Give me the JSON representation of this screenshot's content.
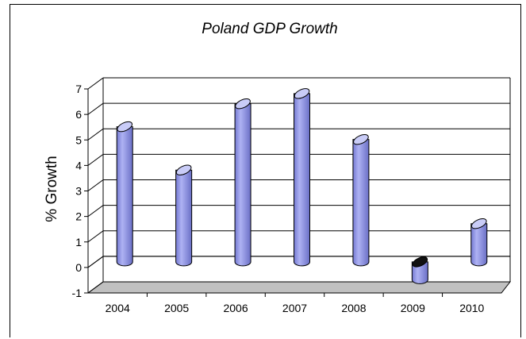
{
  "chart_data": {
    "type": "bar",
    "title": "Poland GDP Growth",
    "xlabel": "",
    "ylabel": "% Growth",
    "categories": [
      "2004",
      "2005",
      "2006",
      "2007",
      "2008",
      "2009",
      "2010"
    ],
    "values": [
      5.3,
      3.6,
      6.2,
      6.6,
      4.8,
      -0.7,
      1.5
    ],
    "ylim": [
      -1,
      7
    ],
    "yticks": [
      "-1",
      "0",
      "1",
      "2",
      "3",
      "4",
      "5",
      "6",
      "7"
    ],
    "grid": true,
    "legend": "none",
    "style": "3d-cylinder",
    "colors": {
      "bar": "#a3a8ee",
      "bar_dark": "#6b70c8",
      "bar_top": "#c9ccf7",
      "negative_top": "#111111",
      "floor": "#c0c0c0"
    }
  }
}
